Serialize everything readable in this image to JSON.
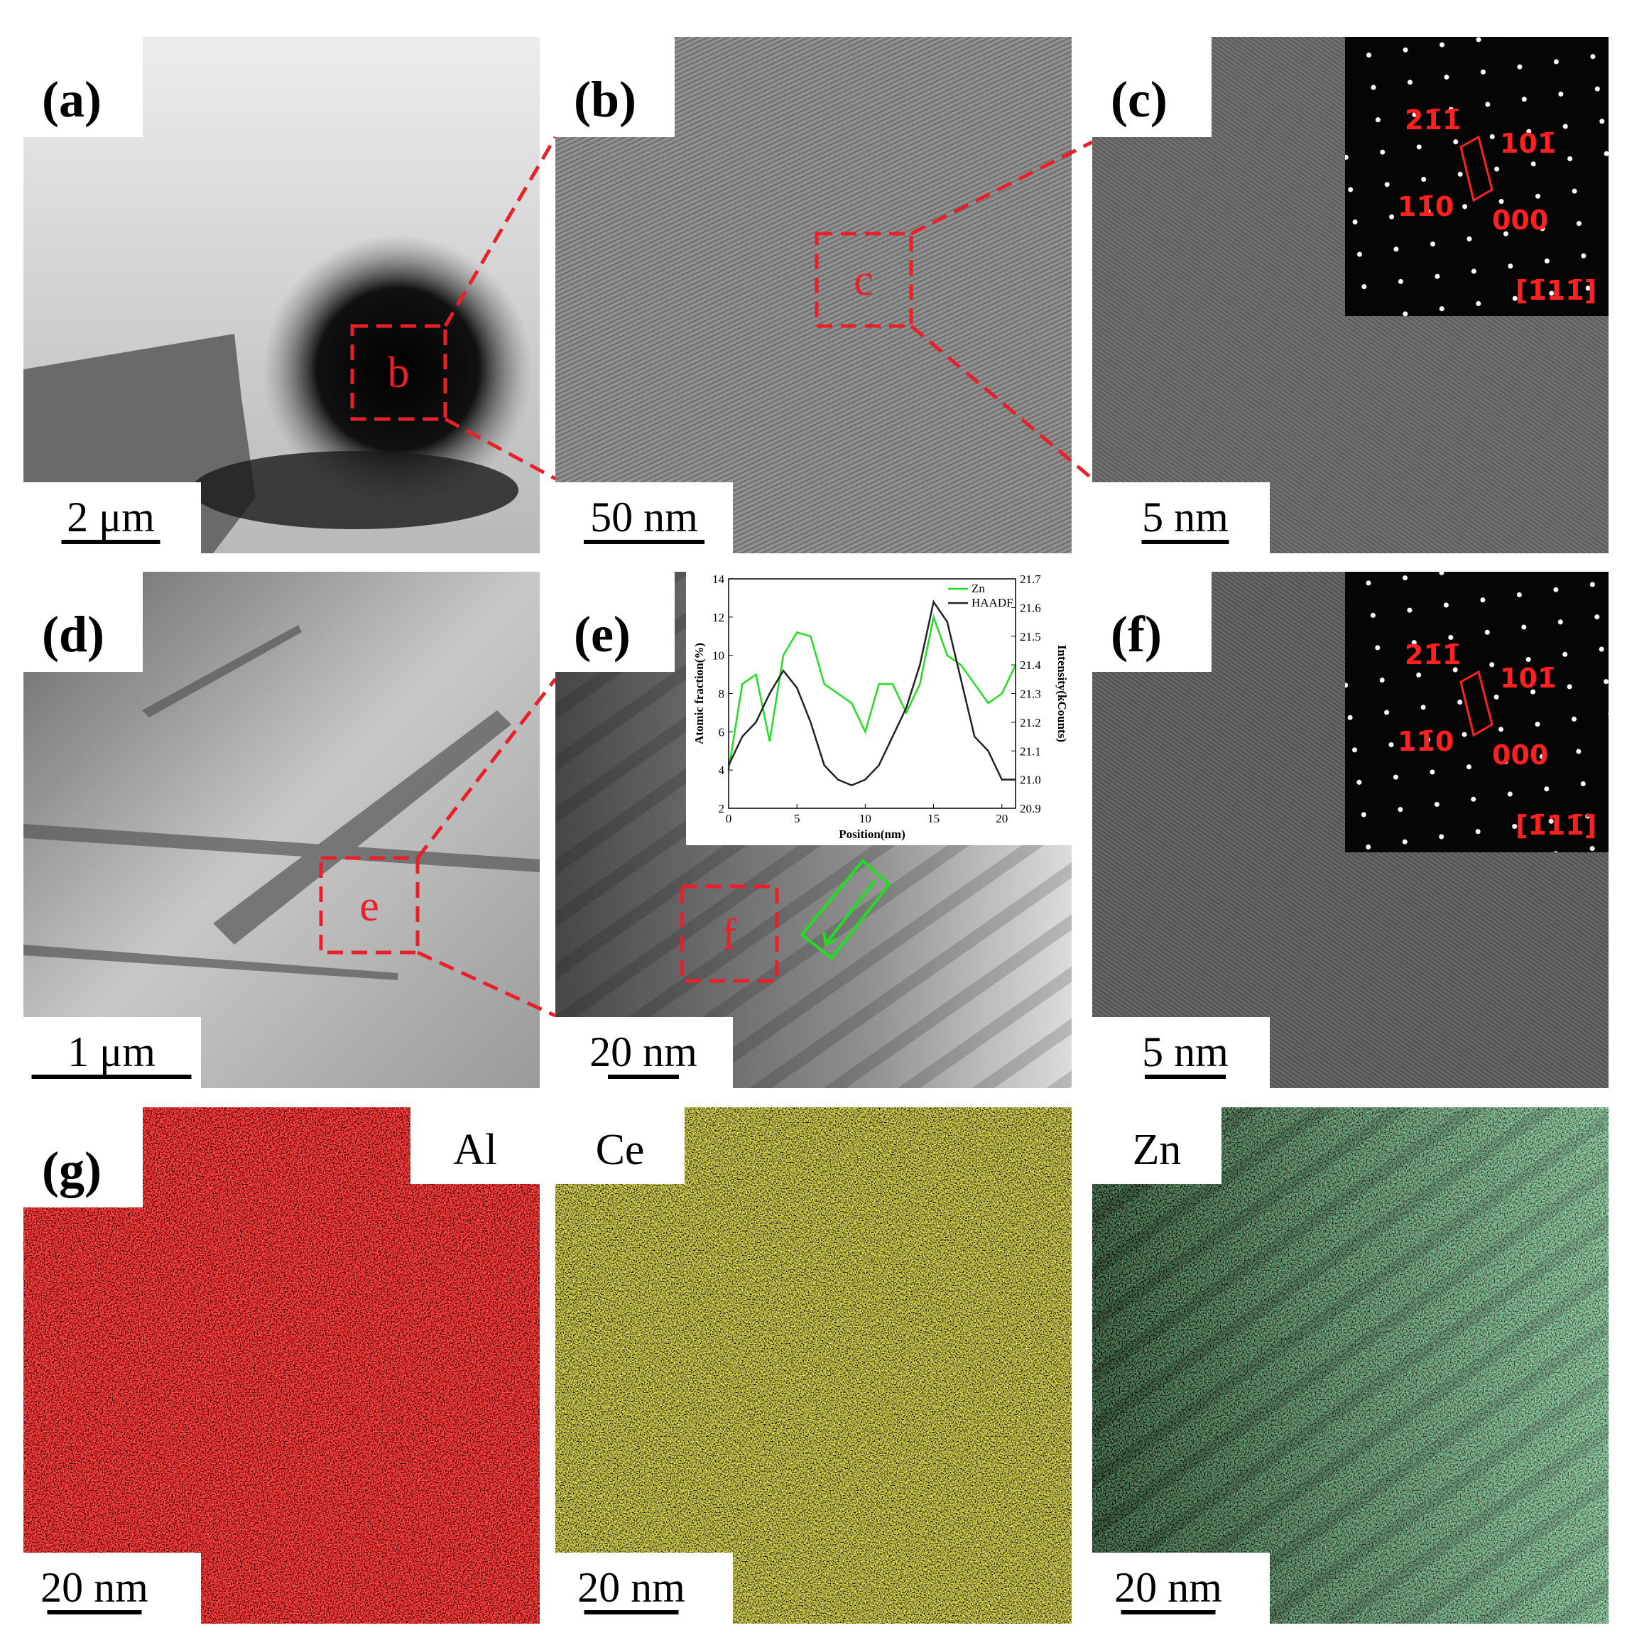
{
  "panels": [
    {
      "label": "(a)",
      "scale_bar": "2 μm",
      "zoom_box": "b"
    },
    {
      "label": "(b)",
      "scale_bar": "50 nm",
      "zoom_box": "c"
    },
    {
      "label": "(c)",
      "scale_bar": "5 nm",
      "diffraction": {
        "spots": [
          "21̄1̄",
          "101̄",
          "11̄0",
          "000"
        ],
        "zone_axis": "[1̄11̄]"
      }
    },
    {
      "label": "(d)",
      "scale_bar": "1 μm",
      "zoom_box": "e"
    },
    {
      "label": "(e)",
      "scale_bar": "20 nm",
      "zoom_box": "f"
    },
    {
      "label": "(f)",
      "scale_bar": "5 nm",
      "diffraction": {
        "spots": [
          "21̄1̄",
          "101̄",
          "11̄0",
          "000"
        ],
        "zone_axis": "[1̄11̄]"
      }
    },
    {
      "label": "(g)",
      "scale_bar": "20 nm",
      "element": "Al"
    },
    {
      "scale_bar": "20 nm",
      "element": "Ce"
    },
    {
      "scale_bar": "20 nm",
      "element": "Zn"
    }
  ],
  "chart_data": {
    "type": "line",
    "xlabel": "Position(nm)",
    "ylabel": "Atomic fraction(%)",
    "y2label": "Intensity(kCounts)",
    "x": [
      0,
      1,
      2,
      3,
      4,
      5,
      6,
      7,
      8,
      9,
      10,
      11,
      12,
      13,
      14,
      15,
      16,
      17,
      18,
      19,
      20,
      21
    ],
    "series": [
      {
        "name": "Zn",
        "color": "#22dd22",
        "values": [
          4.0,
          8.5,
          9.0,
          5.5,
          10.0,
          11.2,
          11.0,
          8.5,
          8.0,
          7.5,
          6.0,
          8.5,
          8.5,
          7.0,
          8.5,
          12.0,
          10.0,
          9.5,
          8.5,
          7.5,
          8.0,
          9.5
        ]
      },
      {
        "name": "HAADF",
        "color": "#222222",
        "axis": "y2",
        "values": [
          21.05,
          21.15,
          21.2,
          21.3,
          21.38,
          21.32,
          21.2,
          21.05,
          21.0,
          20.98,
          21.0,
          21.05,
          21.15,
          21.25,
          21.4,
          21.62,
          21.55,
          21.35,
          21.15,
          21.1,
          21.0,
          21.0
        ]
      }
    ],
    "xlim": [
      0,
      21
    ],
    "xticks": [
      0,
      5,
      10,
      15,
      20
    ],
    "ylim": [
      2,
      14
    ],
    "yticks": [
      2,
      4,
      6,
      8,
      10,
      12,
      14
    ],
    "y2lim": [
      20.9,
      21.7
    ],
    "y2ticks": [
      20.9,
      {
        "value": 21,
        "label": "21.0"
      },
      21.1,
      21.2,
      21.3,
      21.4,
      21.5,
      21.6,
      21.7
    ],
    "legend": "upper right"
  }
}
